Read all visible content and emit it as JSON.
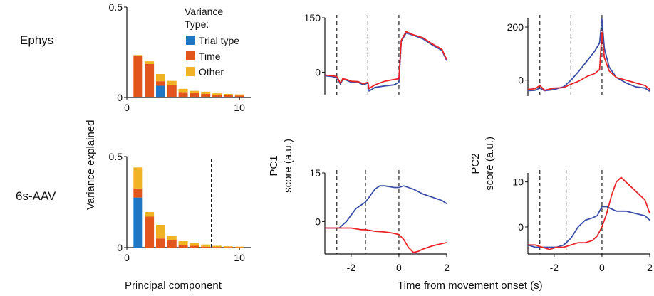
{
  "colors": {
    "trial_type": "#1f77c4",
    "time": "#e2561d",
    "other": "#f0b323",
    "line_blue": "#3b4fa8",
    "line_red": "#e8262a"
  },
  "labels": {
    "row_top": "Ephys",
    "row_bottom": "6s-AAV",
    "y_variance": "Variance explained",
    "x_pc": "Principal component",
    "x_time": "Time from movement onset (s)",
    "pc1_title_1": "PC1",
    "pc1_title_2": "score (a.u.)",
    "pc2_title_1": "PC2",
    "pc2_title_2": "score (a.u.)",
    "legend_title_1": "Variance",
    "legend_title_2": "Type:",
    "legend_items": [
      "Trial type",
      "Time",
      "Other"
    ]
  },
  "chart_data": [
    {
      "id": "ephys_variance",
      "type": "bar",
      "stacked": true,
      "categories": [
        1,
        2,
        3,
        4,
        5,
        6,
        7,
        8,
        9,
        10
      ],
      "series": [
        {
          "name": "Trial type",
          "values": [
            0,
            0,
            0.065,
            0,
            0,
            0,
            0,
            0,
            0,
            0
          ]
        },
        {
          "name": "Time",
          "values": [
            0.23,
            0.185,
            0.025,
            0.07,
            0.03,
            0.025,
            0.02,
            0.015,
            0.012,
            0.01
          ]
        },
        {
          "name": "Other",
          "values": [
            0.005,
            0.015,
            0.04,
            0.022,
            0.018,
            0.012,
            0.012,
            0.008,
            0.008,
            0.007
          ]
        }
      ],
      "xticks": [
        0,
        10
      ],
      "yticks": [
        0,
        0.5
      ],
      "xlim": [
        0,
        11
      ],
      "ylim": [
        0,
        0.5
      ]
    },
    {
      "id": "aav_variance",
      "type": "bar",
      "stacked": true,
      "categories": [
        1,
        2,
        3,
        4,
        5,
        6,
        7,
        8,
        9,
        10
      ],
      "series": [
        {
          "name": "Trial type",
          "values": [
            0.275,
            0,
            0,
            0,
            0,
            0,
            0,
            0,
            0,
            0
          ]
        },
        {
          "name": "Time",
          "values": [
            0.05,
            0.17,
            0.05,
            0.04,
            0.015,
            0.01,
            0.005,
            0.003,
            0.002,
            0.002
          ]
        },
        {
          "name": "Other",
          "values": [
            0.115,
            0.025,
            0.075,
            0.025,
            0.02,
            0.015,
            0.012,
            0.007,
            0.005,
            0.003
          ]
        }
      ],
      "xticks": [
        0,
        10
      ],
      "yticks": [
        0,
        0.5
      ],
      "xlim": [
        0,
        11
      ],
      "ylim": [
        0,
        0.5
      ],
      "vline": 7.5
    },
    {
      "id": "ephys_pc1",
      "type": "line",
      "xlim": [
        -3.1,
        2
      ],
      "ylim": [
        -62,
        150
      ],
      "yticks": [
        0,
        150
      ],
      "xticks": [],
      "vlines": [
        -2.6,
        -1.3,
        0
      ],
      "series": [
        {
          "color": "blue",
          "x": [
            -3.1,
            -2.8,
            -2.6,
            -2.45,
            -2.35,
            -2.2,
            -2.0,
            -1.7,
            -1.5,
            -1.3,
            -1.25,
            -1.0,
            -0.6,
            -0.2,
            0,
            0.1,
            0.3,
            0.6,
            1.0,
            1.4,
            1.8,
            2.0
          ],
          "y": [
            -10,
            -12,
            -15,
            -33,
            -20,
            -22,
            -28,
            -28,
            -35,
            -30,
            -52,
            -42,
            -38,
            -35,
            -28,
            85,
            108,
            102,
            92,
            75,
            60,
            32
          ]
        },
        {
          "color": "red",
          "x": [
            -3.1,
            -2.8,
            -2.6,
            -2.45,
            -2.35,
            -2.2,
            -2.0,
            -1.7,
            -1.5,
            -1.3,
            -1.25,
            -1.0,
            -0.6,
            -0.2,
            0,
            0.1,
            0.3,
            0.6,
            1.0,
            1.4,
            1.8,
            2.0
          ],
          "y": [
            -8,
            -10,
            -12,
            -30,
            -18,
            -20,
            -25,
            -26,
            -32,
            -28,
            -45,
            -35,
            -25,
            -20,
            -18,
            88,
            112,
            103,
            95,
            78,
            63,
            35
          ]
        }
      ]
    },
    {
      "id": "ephys_pc2",
      "type": "line",
      "xlim": [
        -3.1,
        2
      ],
      "ylim": [
        -60,
        235
      ],
      "yticks": [
        0,
        200
      ],
      "xticks": [],
      "vlines": [
        -2.6,
        -1.3,
        0
      ],
      "series": [
        {
          "color": "blue",
          "x": [
            -3.1,
            -2.8,
            -2.6,
            -2.4,
            -2.0,
            -1.6,
            -1.3,
            -1.0,
            -0.6,
            -0.3,
            -0.1,
            0,
            0.1,
            0.3,
            0.6,
            1.0,
            1.4,
            1.8,
            2.0
          ],
          "y": [
            -40,
            -38,
            -30,
            -40,
            -35,
            -25,
            0,
            30,
            75,
            110,
            140,
            230,
            120,
            50,
            10,
            -10,
            -25,
            -30,
            -42
          ]
        },
        {
          "color": "red",
          "x": [
            -3.1,
            -2.8,
            -2.6,
            -2.4,
            -2.0,
            -1.6,
            -1.3,
            -1.0,
            -0.6,
            -0.3,
            -0.1,
            0,
            0.1,
            0.3,
            0.6,
            1.0,
            1.4,
            1.8,
            2.0
          ],
          "y": [
            -35,
            -32,
            -20,
            -38,
            -30,
            -28,
            -15,
            -5,
            15,
            25,
            40,
            180,
            85,
            35,
            10,
            0,
            -10,
            -20,
            -35
          ]
        }
      ]
    },
    {
      "id": "aav_pc1",
      "type": "line",
      "xlim": [
        -3.1,
        2
      ],
      "ylim": [
        -10,
        15
      ],
      "yticks": [
        0,
        15
      ],
      "xticks": [
        -2,
        0,
        2
      ],
      "vlines": [
        -2.6,
        -1.4,
        0
      ],
      "series": [
        {
          "color": "blue",
          "x": [
            -3.1,
            -2.8,
            -2.5,
            -2.2,
            -2.0,
            -1.8,
            -1.6,
            -1.4,
            -1.2,
            -1.0,
            -0.8,
            -0.6,
            -0.4,
            -0.2,
            0,
            0.2,
            0.6,
            1.0,
            1.4,
            1.8,
            2.0
          ],
          "y": [
            -2,
            -2,
            -2,
            0,
            2,
            4,
            5,
            6,
            8,
            10,
            11,
            11,
            10.8,
            10.5,
            10.5,
            11,
            10,
            8.5,
            7.5,
            6.5,
            5.5
          ]
        },
        {
          "color": "red",
          "x": [
            -3.1,
            -2.8,
            -2.5,
            -2.2,
            -2.0,
            -1.6,
            -1.4,
            -1.0,
            -0.6,
            -0.3,
            0,
            0.2,
            0.4,
            0.6,
            0.8,
            1.0,
            1.4,
            1.8,
            2.0
          ],
          "y": [
            -2,
            -2,
            -2,
            -2,
            -2,
            -2.5,
            -2.5,
            -3,
            -3.2,
            -3.5,
            -4,
            -5.5,
            -8,
            -9.5,
            -9.2,
            -8.5,
            -7.5,
            -6.8,
            -6.5
          ]
        }
      ]
    },
    {
      "id": "aav_pc2",
      "type": "line",
      "xlim": [
        -3.1,
        2
      ],
      "ylim": [
        -6,
        12
      ],
      "yticks": [
        0,
        10
      ],
      "xticks": [
        -2,
        0,
        2
      ],
      "vlines": [
        -2.6,
        -1.5,
        0
      ],
      "series": [
        {
          "color": "blue",
          "x": [
            -3.1,
            -2.8,
            -2.5,
            -2.2,
            -1.9,
            -1.6,
            -1.3,
            -1.0,
            -0.7,
            -0.4,
            -0.2,
            0,
            0.2,
            0.6,
            1.0,
            1.4,
            1.8,
            2.0
          ],
          "y": [
            -4,
            -4.5,
            -4.5,
            -4.5,
            -4.5,
            -4,
            -2.5,
            0,
            1.5,
            2,
            2.5,
            4.5,
            4.5,
            3.5,
            3.5,
            3,
            2.5,
            1.5
          ]
        },
        {
          "color": "red",
          "x": [
            -3.1,
            -2.8,
            -2.5,
            -2.2,
            -1.9,
            -1.6,
            -1.3,
            -1.0,
            -0.7,
            -0.4,
            -0.2,
            0,
            0.2,
            0.4,
            0.6,
            0.8,
            1.0,
            1.4,
            1.8,
            2.0
          ],
          "y": [
            -4,
            -4,
            -4.5,
            -5,
            -4.5,
            -4.5,
            -4,
            -3.5,
            -3.5,
            -3,
            -2,
            0,
            3,
            7,
            10,
            11,
            10,
            8,
            6,
            3
          ]
        }
      ]
    }
  ]
}
